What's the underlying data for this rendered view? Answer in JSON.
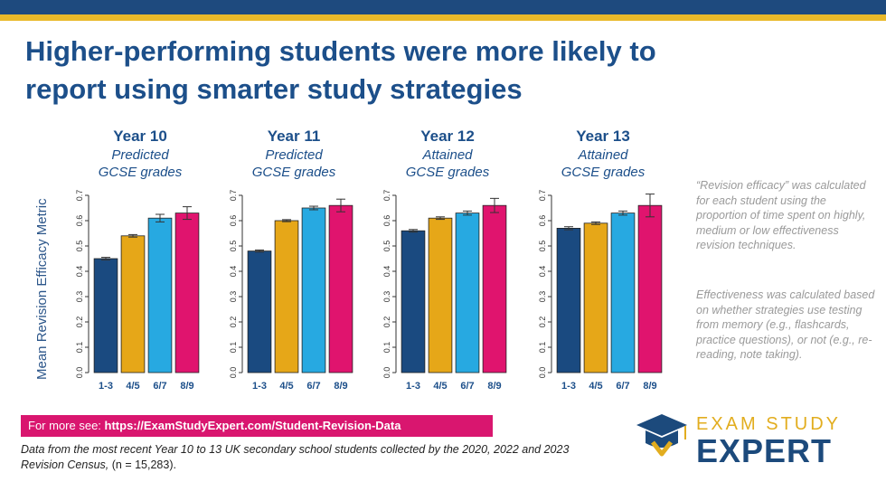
{
  "title": "Higher-performing students were more likely to report using smarter study strategies",
  "ylabel": "Mean Revision Efficacy Metric",
  "colors": [
    "#1a4a80",
    "#e6a718",
    "#27a9e1",
    "#e0146e"
  ],
  "chart_data": [
    {
      "type": "bar",
      "title": "Year 10",
      "subtitle_1": "Predicted",
      "subtitle_2": "GCSE grades",
      "categories": [
        "1-3",
        "4/5",
        "6/7",
        "8/9"
      ],
      "values": [
        0.45,
        0.54,
        0.61,
        0.63
      ],
      "error": [
        0.005,
        0.005,
        0.015,
        0.025
      ],
      "ylim": [
        0,
        0.7
      ],
      "yticks": [
        "0.0",
        "0.1",
        "0.2",
        "0.3",
        "0.4",
        "0.5",
        "0.6",
        "0.7"
      ]
    },
    {
      "type": "bar",
      "title": "Year 11",
      "subtitle_1": "Predicted",
      "subtitle_2": "GCSE grades",
      "categories": [
        "1-3",
        "4/5",
        "6/7",
        "8/9"
      ],
      "values": [
        0.48,
        0.6,
        0.65,
        0.66
      ],
      "error": [
        0.004,
        0.004,
        0.007,
        0.025
      ],
      "ylim": [
        0,
        0.7
      ],
      "yticks": [
        "0.0",
        "0.1",
        "0.2",
        "0.3",
        "0.4",
        "0.5",
        "0.6",
        "0.7"
      ]
    },
    {
      "type": "bar",
      "title": "Year 12",
      "subtitle_1": "Attained",
      "subtitle_2": "GCSE grades",
      "categories": [
        "1-3",
        "4/5",
        "6/7",
        "8/9"
      ],
      "values": [
        0.56,
        0.61,
        0.63,
        0.66
      ],
      "error": [
        0.005,
        0.005,
        0.008,
        0.028
      ],
      "ylim": [
        0,
        0.7
      ],
      "yticks": [
        "0.0",
        "0.1",
        "0.2",
        "0.3",
        "0.4",
        "0.5",
        "0.6",
        "0.7"
      ]
    },
    {
      "type": "bar",
      "title": "Year 13",
      "subtitle_1": "Attained",
      "subtitle_2": "GCSE grades",
      "categories": [
        "1-3",
        "4/5",
        "6/7",
        "8/9"
      ],
      "values": [
        0.57,
        0.59,
        0.63,
        0.66
      ],
      "error": [
        0.006,
        0.005,
        0.008,
        0.045
      ],
      "ylim": [
        0,
        0.7
      ],
      "yticks": [
        "0.0",
        "0.1",
        "0.2",
        "0.3",
        "0.4",
        "0.5",
        "0.6",
        "0.7"
      ]
    }
  ],
  "note_1": "“Revision efficacy” was calculated for each student using the proportion of time spent on highly, medium or low effectiveness revision techniques.",
  "note_2": "Effectiveness was calculated based on whether strategies use testing from memory (e.g., flashcards, practice questions), or not (e.g., re-reading, note taking).",
  "link_prefix": "For more see: ",
  "link_url": "https://ExamStudyExpert.com/Student-Revision-Data",
  "footnote_italic": "Data from the most recent Year 10 to 13 UK secondary school students collected by the 2020, 2022 and 2023 Revision Census,",
  "footnote_plain": " (n = 15,283).",
  "logo": {
    "top": "EXAM STUDY",
    "bottom": "EXPERT",
    "icon": "graduation-cap-icon"
  }
}
